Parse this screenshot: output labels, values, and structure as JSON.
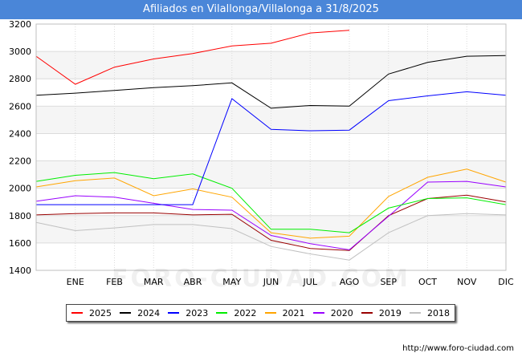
{
  "header": {
    "title": "Afiliados en Vilallonga/Villalonga a 31/8/2025"
  },
  "watermark": "FORO-CIUDAD.COM",
  "source": "http://www.foro-ciudad.com",
  "chart_data": {
    "type": "line",
    "title": "Afiliados en Vilallonga/Villalonga a 31/8/2025",
    "x": [
      "",
      "ENE",
      "FEB",
      "MAR",
      "ABR",
      "MAY",
      "JUN",
      "JUL",
      "AGO",
      "SEP",
      "OCT",
      "NOV",
      "DIC"
    ],
    "ylim": [
      1400,
      3200
    ],
    "yticks": [
      1400,
      1600,
      1800,
      2000,
      2200,
      2400,
      2600,
      2800,
      3000,
      3200
    ],
    "grid": true,
    "legend_position": "bottom",
    "series": [
      {
        "name": "2025",
        "color": "#ff0000",
        "values": [
          2965,
          2760,
          2885,
          2945,
          2985,
          3040,
          3060,
          3135,
          3155,
          null,
          null,
          null,
          null
        ]
      },
      {
        "name": "2024",
        "color": "#000000",
        "values": [
          2680,
          2695,
          2715,
          2735,
          2750,
          2770,
          2585,
          2605,
          2600,
          2835,
          2920,
          2965,
          2970
        ]
      },
      {
        "name": "2023",
        "color": "#0000ff",
        "values": [
          1880,
          1880,
          1880,
          1880,
          1880,
          2655,
          2430,
          2420,
          2425,
          2640,
          2675,
          2705,
          2680
        ]
      },
      {
        "name": "2022",
        "color": "#00ee00",
        "values": [
          2050,
          2095,
          2115,
          2070,
          2105,
          2000,
          1700,
          1700,
          1675,
          1855,
          1925,
          1930,
          1880
        ]
      },
      {
        "name": "2021",
        "color": "#ffa500",
        "values": [
          2010,
          2055,
          2075,
          1945,
          1995,
          1935,
          1675,
          1635,
          1650,
          1940,
          2080,
          2140,
          2045
        ]
      },
      {
        "name": "2020",
        "color": "#9900ff",
        "values": [
          1905,
          1945,
          1935,
          1890,
          1845,
          1840,
          1655,
          1595,
          1550,
          1795,
          2045,
          2050,
          2010
        ]
      },
      {
        "name": "2019",
        "color": "#990000",
        "values": [
          1805,
          1815,
          1820,
          1820,
          1805,
          1810,
          1620,
          1560,
          1545,
          1800,
          1925,
          1950,
          1900
        ]
      },
      {
        "name": "2018",
        "color": "#c0c0c0",
        "values": [
          1750,
          1690,
          1710,
          1735,
          1735,
          1705,
          1575,
          1520,
          1475,
          1675,
          1800,
          1815,
          1805
        ]
      }
    ]
  }
}
